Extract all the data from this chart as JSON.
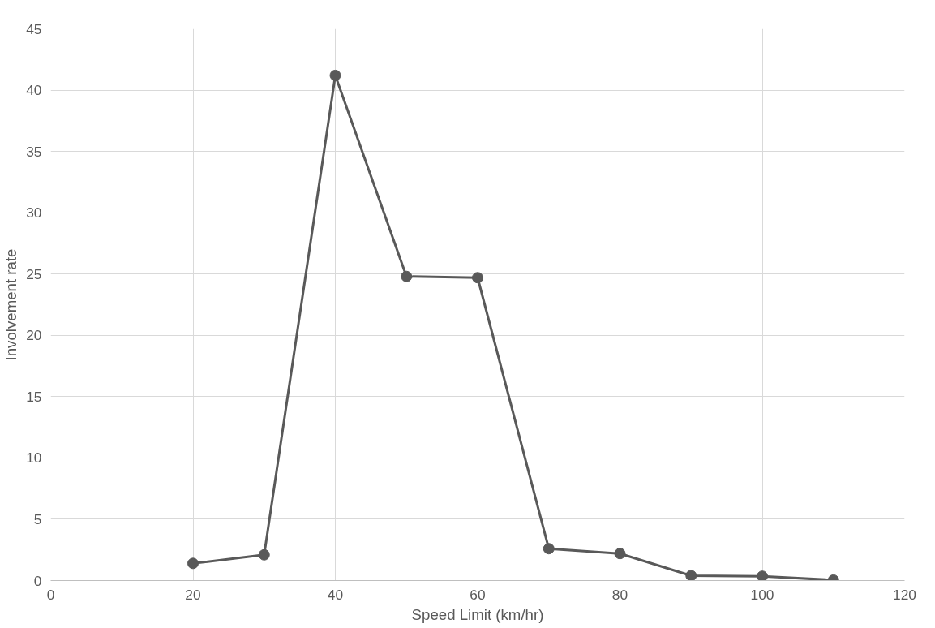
{
  "chart_data": {
    "type": "line",
    "xlabel": "Speed Limit (km/hr)",
    "ylabel": "Involvement rate",
    "x": [
      20,
      30,
      40,
      50,
      60,
      70,
      80,
      90,
      100,
      110
    ],
    "series": [
      {
        "color": "#595959",
        "values": [
          1.4,
          2.1,
          41.2,
          24.8,
          24.7,
          2.6,
          2.2,
          0.4,
          0.35,
          0.04
        ]
      }
    ],
    "xlim": [
      0,
      120
    ],
    "xticks": [
      0,
      20,
      40,
      60,
      80,
      100,
      120
    ],
    "ylim": [
      0,
      45
    ],
    "yticks": [
      0,
      5,
      10,
      15,
      20,
      25,
      30,
      35,
      40,
      45
    ],
    "grid": true,
    "marker": "circle",
    "line_style": "solid"
  }
}
